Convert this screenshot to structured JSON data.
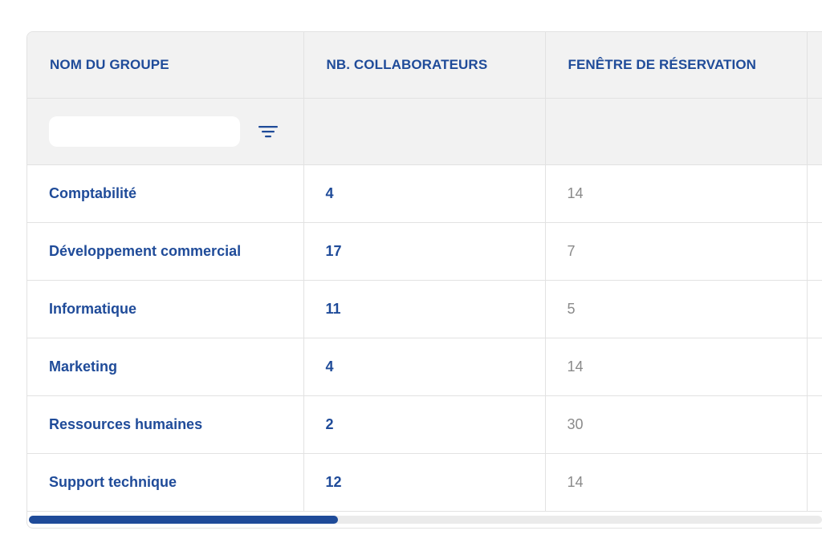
{
  "table": {
    "columns": [
      "NOM DU GROUPE",
      "NB. COLLABORATEURS",
      "FENÊTRE DE RÉSERVATION",
      ""
    ],
    "filter": {
      "value": "",
      "placeholder": "",
      "icon": "filter-icon"
    },
    "rows": [
      {
        "name": "Comptabilité",
        "count": "4",
        "window": "14"
      },
      {
        "name": "Développement commercial",
        "count": "17",
        "window": "7"
      },
      {
        "name": "Informatique",
        "count": "11",
        "window": "5"
      },
      {
        "name": "Marketing",
        "count": "4",
        "window": "14"
      },
      {
        "name": "Ressources humaines",
        "count": "2",
        "window": "30"
      },
      {
        "name": "Support technique",
        "count": "12",
        "window": "14"
      }
    ]
  },
  "scrollbar": {
    "position_fraction": 0.0,
    "visible_fraction": 0.39
  },
  "colors": {
    "accent": "#1f4b99",
    "header_bg": "#f2f2f2",
    "muted_text": "#8a8a8a",
    "border": "#e2e2e2"
  }
}
